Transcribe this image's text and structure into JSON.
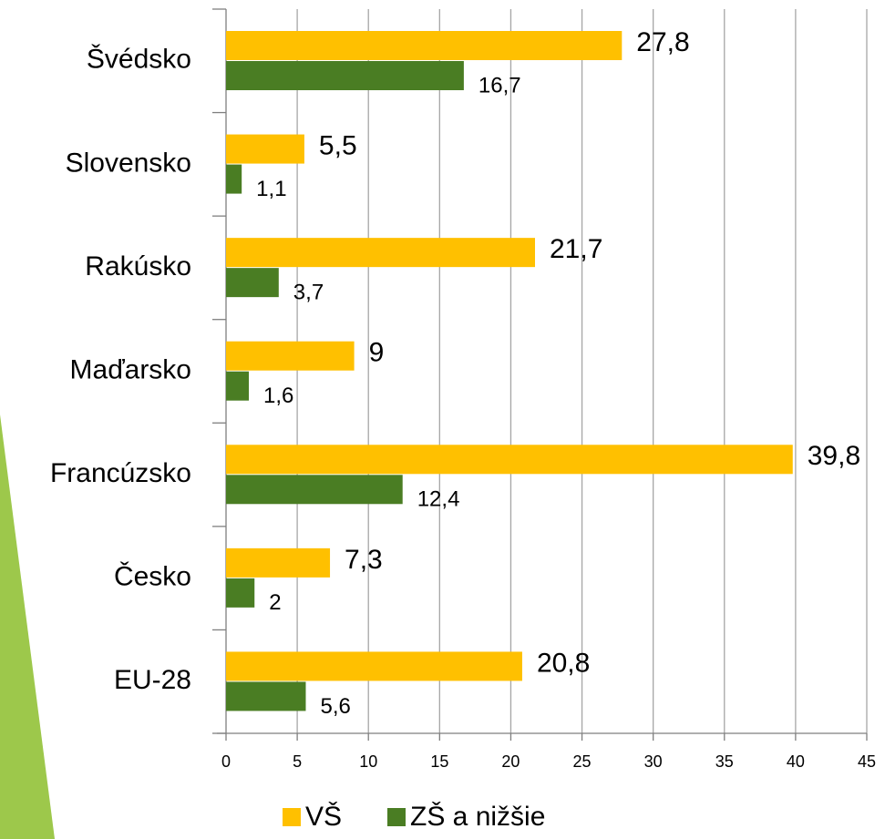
{
  "chart_data": {
    "type": "bar",
    "orientation": "horizontal",
    "categories": [
      "Švédsko",
      "Slovensko",
      "Rakúsko",
      "Maďarsko",
      "Francúzsko",
      "Česko",
      "EU-28"
    ],
    "series": [
      {
        "name": "VŠ",
        "color": "#ffc000",
        "values": [
          27.8,
          5.5,
          21.7,
          9,
          39.8,
          7.3,
          20.8
        ],
        "value_labels": [
          "27,8",
          "5,5",
          "21,7",
          "9",
          "39,8",
          "7,3",
          "20,8"
        ]
      },
      {
        "name": "ZŠ a nižšie",
        "color": "#4a7d23",
        "values": [
          16.7,
          1.1,
          3.7,
          1.6,
          12.4,
          2,
          5.6
        ],
        "value_labels": [
          "16,7",
          "1,1",
          "3,7",
          "1,6",
          "12,4",
          "2",
          "5,6"
        ]
      }
    ],
    "xlim": [
      0,
      45
    ],
    "xticks": [
      0,
      5,
      10,
      15,
      20,
      25,
      30,
      35,
      40,
      45
    ],
    "grid": true,
    "legend": "bottom"
  }
}
